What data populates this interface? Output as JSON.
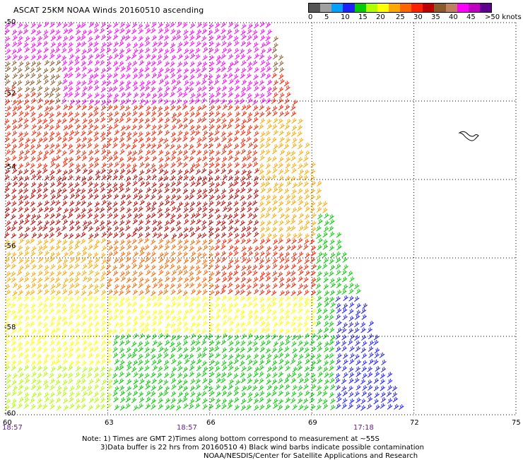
{
  "title": "ASCAT 25KM NOAA Winds 20160510 ascending",
  "legend": {
    "colors": [
      "#555555",
      "#a0a0a0",
      "#00a0ff",
      "#2020ff",
      "#00cc00",
      "#b0ff00",
      "#ffff00",
      "#ffa800",
      "#ff6600",
      "#ff2000",
      "#c00000",
      "#8b5a2b",
      "#c08060",
      "#ff00ff",
      "#c000c0",
      "#600090"
    ],
    "labels": [
      "0",
      "5",
      "10",
      "15",
      "20",
      "25",
      "30",
      "35",
      "40",
      "45",
      ">50 knots"
    ]
  },
  "axes": {
    "lat_labels": [
      "-50",
      "-52",
      "-54",
      "-56",
      "-58",
      "-60"
    ],
    "lon_labels": [
      "60",
      "63",
      "66",
      "69",
      "72",
      "75"
    ]
  },
  "times": [
    "18:57",
    "18:57",
    "17:18"
  ],
  "notes": [
    "Note: 1) Times are GMT 2)Times along bottom correspond to measurement at ~55S",
    "3)Data buffer is 22 hrs from 20160510 4) Black wind barbs indicate possible contamination",
    "NOAA/NESDIS/Center for Satellite Applications and Research"
  ],
  "map": {
    "lat_range": [
      -60,
      -50
    ],
    "lon_range": [
      60,
      75
    ],
    "projection": "equirectangular",
    "grid": "dotted"
  }
}
